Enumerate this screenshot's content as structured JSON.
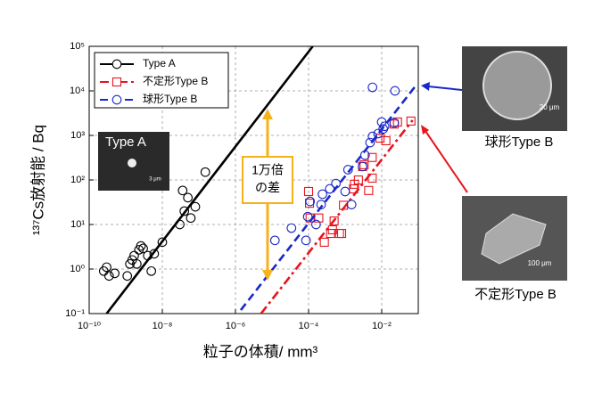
{
  "chart_data": {
    "type": "scatter",
    "x_label": "粒子の体積/ mm³",
    "y_label": "¹³⁷Cs放射能 / Bq",
    "xscale": "log",
    "yscale": "log",
    "grid": true,
    "legend": "upper-left",
    "xlim": [
      1e-10,
      0.1
    ],
    "ylim": [
      0.1,
      100000
    ],
    "xticks": [
      {
        "value": 1e-10,
        "label": "10⁻¹⁰"
      },
      {
        "value": 1e-08,
        "label": "10⁻⁸"
      },
      {
        "value": 1e-06,
        "label": "10⁻⁶"
      },
      {
        "value": 0.0001,
        "label": "10⁻⁴"
      },
      {
        "value": 0.01,
        "label": "10⁻²"
      }
    ],
    "yticks": [
      {
        "value": 0.1,
        "label": "10⁻¹"
      },
      {
        "value": 1,
        "label": "10⁰"
      },
      {
        "value": 10,
        "label": "10¹"
      },
      {
        "value": 100,
        "label": "10²"
      },
      {
        "value": 1000,
        "label": "10³"
      },
      {
        "value": 10000,
        "label": "10⁴"
      },
      {
        "value": 100000,
        "label": "10⁵"
      }
    ],
    "series": [
      {
        "name": "Type A",
        "color": "#000000",
        "marker": "circle",
        "dash": "solid",
        "x": [
          2.5e-10,
          3e-10,
          3.5e-10,
          5e-10,
          1.1e-09,
          1.3e-09,
          1.5e-09,
          1.7e-09,
          2e-09,
          2.3e-09,
          2.6e-09,
          3e-09,
          4e-09,
          5e-09,
          6e-09,
          1e-08,
          3e-08,
          3.6e-08,
          4e-08,
          5e-08,
          6e-08,
          8e-08,
          1.5e-07
        ],
        "values": [
          0.9,
          1.1,
          0.7,
          0.8,
          0.7,
          1.3,
          1.6,
          2.0,
          1.3,
          2.7,
          3.3,
          2.9,
          2.0,
          0.9,
          2.2,
          4,
          10,
          58,
          20,
          40,
          14,
          25,
          150
        ],
        "line_x": [
          3e-10,
          0.00013
        ],
        "line_values": [
          0.1,
          100000
        ]
      },
      {
        "name": "不定形Type B",
        "color": "#e8141e",
        "marker": "square",
        "dash": "dashdot",
        "x": [
          0.0001,
          0.000106,
          0.00011,
          0.00019,
          0.00027,
          0.0004,
          0.00045,
          0.0007,
          0.0008,
          0.0005,
          0.0009,
          0.0017,
          0.0018,
          0.0023,
          0.003,
          0.0033,
          0.0044,
          0.0055,
          0.0055,
          0.009,
          0.013,
          0.022,
          0.027,
          0.063
        ],
        "values": [
          55,
          30,
          14,
          14,
          4,
          6.3,
          7.6,
          6.3,
          6.3,
          12,
          27,
          63,
          80,
          100,
          200,
          220,
          58,
          110,
          320,
          870,
          760,
          1800,
          2000,
          2100
        ],
        "line_x": [
          5e-06,
          0.07
        ],
        "line_values": [
          0.1,
          2200
        ]
      },
      {
        "name": "球形Type B",
        "color": "#1a28c8",
        "marker": "circle",
        "dash": "dashed",
        "x": [
          1.2e-05,
          3.4e-05,
          8.5e-05,
          9.5e-05,
          0.00011,
          0.00016,
          0.00022,
          0.00024,
          0.00038,
          0.00056,
          0.001,
          0.0012,
          0.0015,
          0.003,
          0.0035,
          0.0048,
          0.0056,
          0.008,
          0.01,
          0.011,
          0.012,
          0.022,
          0.0056,
          0.023
        ],
        "values": [
          4.4,
          8.3,
          4.4,
          15,
          33,
          10,
          28,
          48,
          63,
          83,
          55,
          170,
          28,
          200,
          360,
          690,
          950,
          1100,
          2000,
          1400,
          1600,
          1900,
          12000,
          10000
        ],
        "line_x": [
          1.4e-06,
          0.085
        ],
        "line_values": [
          0.12,
          13000
        ]
      }
    ],
    "annotation": {
      "lines": [
        "1万倍",
        "の差"
      ],
      "color": "#f5b21a"
    },
    "insets": [
      {
        "label": "Type A",
        "scale": "3 μm"
      },
      {
        "caption": "球形Type B",
        "scale": "20 μm",
        "color": "#1a28c8"
      },
      {
        "caption": "不定形Type B",
        "scale": "100 μm",
        "color": "#e8141e"
      }
    ]
  }
}
